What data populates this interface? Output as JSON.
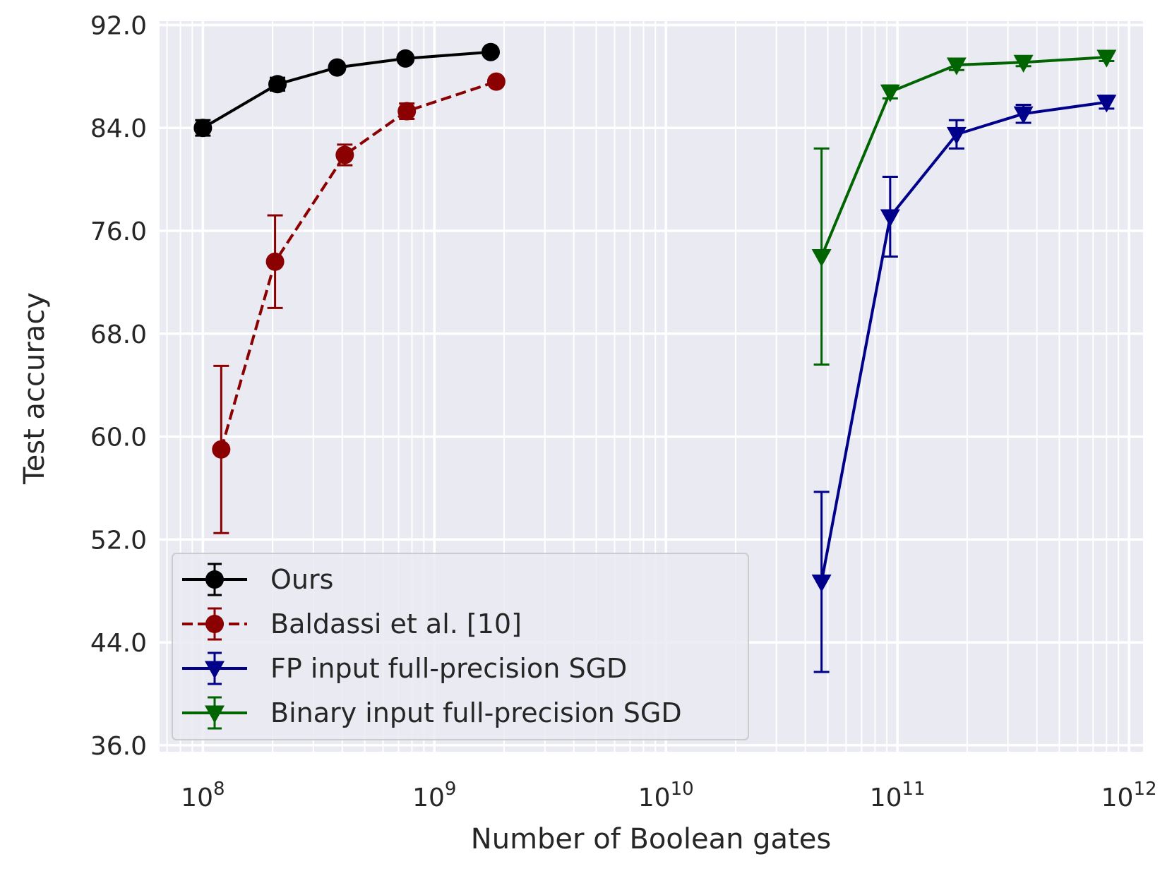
{
  "chart_data": {
    "type": "line",
    "title": "",
    "xlabel": "Number of Boolean gates",
    "ylabel": "Test accuracy",
    "xscale": "log",
    "xlim": [
      65000000.0,
      1150000000000.0
    ],
    "ylim": [
      35.5,
      92.3
    ],
    "yticks": [
      36.0,
      44.0,
      52.0,
      60.0,
      68.0,
      76.0,
      84.0,
      92.0
    ],
    "ytick_labels": [
      "36.0",
      "44.0",
      "52.0",
      "60.0",
      "68.0",
      "76.0",
      "84.0",
      "92.0"
    ],
    "xticks": [
      {
        "value": 100000000.0,
        "base": "10",
        "exp": "8"
      },
      {
        "value": 1000000000.0,
        "base": "10",
        "exp": "9"
      },
      {
        "value": 10000000000.0,
        "base": "10",
        "exp": "10"
      },
      {
        "value": 100000000000.0,
        "base": "10",
        "exp": "11"
      },
      {
        "value": 1000000000000.0,
        "base": "10",
        "exp": "12"
      }
    ],
    "grid": true,
    "legend_position": "lower-left",
    "series": [
      {
        "name": "Ours",
        "color": "#000000",
        "linestyle": "solid",
        "marker": "circle",
        "x": [
          100000000.0,
          210000000.0,
          380000000.0,
          750000000.0,
          1750000000.0
        ],
        "y": [
          84.0,
          87.4,
          88.7,
          89.4,
          89.9
        ],
        "err": [
          0.6,
          0.5,
          0.3,
          0.3,
          0.2
        ]
      },
      {
        "name": "Baldassi et al. [10]",
        "color": "#8b0000",
        "linestyle": "dashed",
        "marker": "circle",
        "x": [
          120000000.0,
          205000000.0,
          410000000.0,
          760000000.0,
          1850000000.0
        ],
        "y": [
          59.0,
          73.6,
          81.9,
          85.3,
          87.6
        ],
        "err": [
          6.5,
          3.6,
          0.8,
          0.6,
          0.3
        ]
      },
      {
        "name": "FP input full-precision SGD",
        "color": "#00008b",
        "linestyle": "solid",
        "marker": "triangle-down",
        "x": [
          47000000000.0,
          93000000000.0,
          180000000000.0,
          350000000000.0,
          800000000000.0
        ],
        "y": [
          48.7,
          77.1,
          83.5,
          85.1,
          86.0
        ],
        "err": [
          7.0,
          3.1,
          1.1,
          0.7,
          0.5
        ]
      },
      {
        "name": "Binary input full-precision SGD",
        "color": "#006400",
        "linestyle": "solid",
        "marker": "triangle-down",
        "x": [
          47000000000.0,
          93000000000.0,
          180000000000.0,
          350000000000.0,
          800000000000.0
        ],
        "y": [
          74.0,
          86.8,
          88.9,
          89.1,
          89.5
        ],
        "err": [
          8.4,
          0.5,
          0.4,
          0.3,
          0.3
        ]
      }
    ]
  }
}
